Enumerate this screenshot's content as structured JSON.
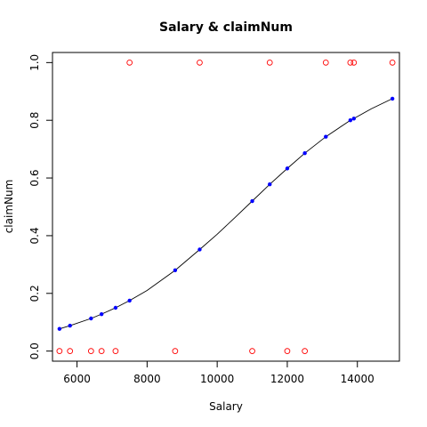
{
  "chart_data": {
    "type": "scatter",
    "title": "Salary & claimNum",
    "xlabel": "Salary",
    "ylabel": "claimNum",
    "xlim": [
      5300,
      15200
    ],
    "ylim": [
      -0.035,
      1.035
    ],
    "x_ticks": [
      6000,
      8000,
      10000,
      12000,
      14000
    ],
    "x_tick_labels": [
      "6000",
      "8000",
      "10000",
      "12000",
      "14000"
    ],
    "y_ticks": [
      0.0,
      0.2,
      0.4,
      0.6,
      0.8,
      1.0
    ],
    "y_tick_labels": [
      "0.0",
      "0.2",
      "0.4",
      "0.6",
      "0.8",
      "1.0"
    ],
    "grid": false,
    "legend": "none",
    "series": [
      {
        "style": "open-circle",
        "color": "#ff0000",
        "points": [
          [
            5500,
            0
          ],
          [
            5800,
            0
          ],
          [
            6400,
            0
          ],
          [
            6700,
            0
          ],
          [
            7100,
            0
          ],
          [
            7500,
            1
          ],
          [
            8800,
            0
          ],
          [
            9500,
            1
          ],
          [
            11000,
            0
          ],
          [
            11500,
            1
          ],
          [
            12000,
            0
          ],
          [
            12500,
            0
          ],
          [
            13100,
            1
          ],
          [
            13800,
            1
          ],
          [
            13900,
            1
          ],
          [
            15000,
            1
          ]
        ]
      },
      {
        "style": "filled-dot",
        "color": "#0000ff",
        "points": [
          [
            5500,
            0.077
          ],
          [
            5800,
            0.088
          ],
          [
            6400,
            0.113
          ],
          [
            6700,
            0.128
          ],
          [
            7100,
            0.15
          ],
          [
            7500,
            0.175
          ],
          [
            8800,
            0.28
          ],
          [
            9500,
            0.352
          ],
          [
            11000,
            0.52
          ],
          [
            11500,
            0.578
          ],
          [
            12000,
            0.633
          ],
          [
            12500,
            0.686
          ],
          [
            13100,
            0.743
          ],
          [
            13800,
            0.8
          ],
          [
            13900,
            0.806
          ],
          [
            15000,
            0.875
          ]
        ]
      },
      {
        "style": "line",
        "color": "#000000",
        "x": [
          5500,
          5800,
          6400,
          6700,
          7100,
          7500,
          8000,
          8800,
          9500,
          10000,
          10500,
          11000,
          11500,
          12000,
          12500,
          13100,
          13800,
          13900,
          14400,
          15000
        ],
        "y": [
          0.077,
          0.088,
          0.113,
          0.128,
          0.15,
          0.175,
          0.21,
          0.28,
          0.352,
          0.405,
          0.462,
          0.52,
          0.578,
          0.633,
          0.686,
          0.743,
          0.8,
          0.806,
          0.84,
          0.875
        ]
      }
    ]
  }
}
